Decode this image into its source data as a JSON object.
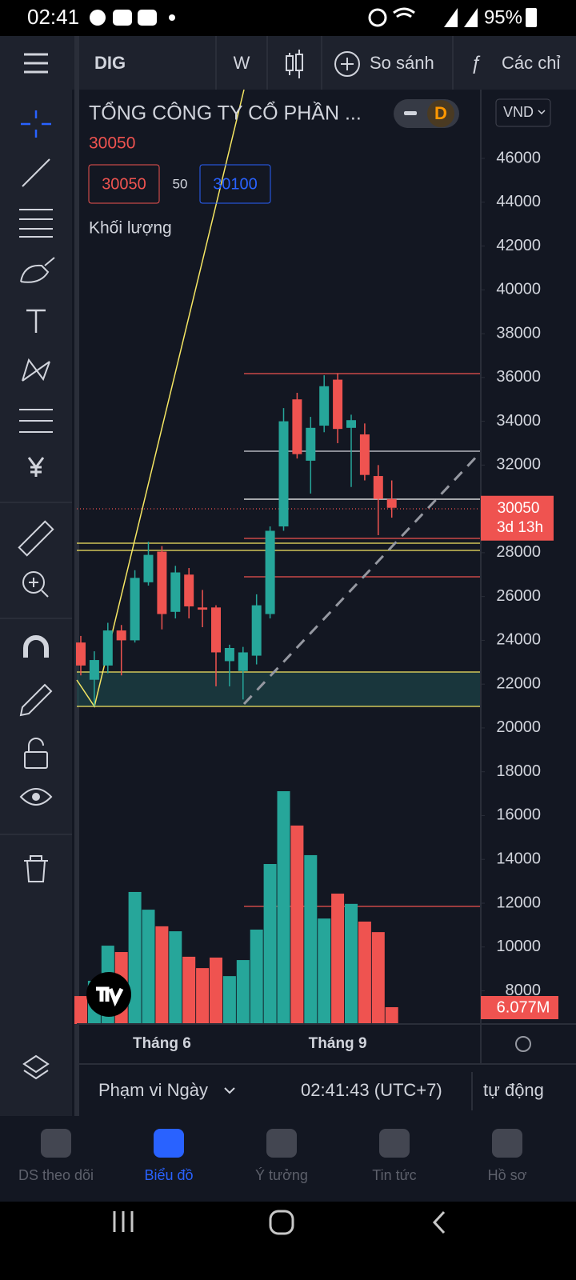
{
  "status_bar": {
    "time": "02:41",
    "battery": "95%"
  },
  "toolbar": {
    "symbol": "DIG",
    "interval": "W",
    "compare": "So sánh",
    "indicators": "Các chỉ"
  },
  "legend": {
    "name": "TỔNG CÔNG TY CỔ PHẦN ...",
    "badge": "D",
    "price": 30050,
    "bid": 30050,
    "spread": 50,
    "ask": 30100,
    "volume_label": "Khối lượng"
  },
  "currency": "VND",
  "countdown": "3d 13h",
  "chart_data": {
    "type": "candlestick",
    "categories": [
      null,
      null,
      null,
      null,
      null,
      null,
      "Tháng 6",
      null,
      null,
      null,
      null,
      null,
      null,
      null,
      null,
      null,
      null,
      null,
      null,
      "Tháng 9",
      null,
      null,
      null,
      null
    ],
    "open": [
      23900,
      22200,
      22850,
      24450,
      24000,
      26650,
      28050,
      25300,
      27000,
      25500,
      25500,
      23050,
      22600,
      23300,
      25200,
      29200,
      35000,
      32200,
      33800,
      35900,
      33700,
      33400,
      31500,
      30450
    ],
    "high": [
      24200,
      23500,
      24800,
      24700,
      27200,
      28500,
      28300,
      27400,
      27300,
      26300,
      25600,
      23800,
      23700,
      26100,
      29200,
      34600,
      35300,
      34200,
      36100,
      36200,
      34300,
      33900,
      32000,
      31300
    ],
    "low": [
      22400,
      21000,
      22500,
      22400,
      23900,
      26500,
      24500,
      25000,
      25000,
      24600,
      21900,
      21900,
      21300,
      22900,
      25000,
      29000,
      32300,
      30700,
      33500,
      33000,
      31000,
      31300,
      28800,
      29600
    ],
    "close": [
      22850,
      23100,
      24450,
      24000,
      26850,
      27900,
      25200,
      27100,
      25550,
      25400,
      23450,
      23650,
      23450,
      25600,
      29000,
      34000,
      32500,
      33700,
      35600,
      33650,
      34050,
      31550,
      30450,
      30050
    ],
    "up_color": "#26a69a",
    "down_color": "#ef5350",
    "volume": {
      "values": [
        10.1,
        15.6,
        28.3,
        26.0,
        47.7,
        41.3,
        35.3,
        33.5,
        24.3,
        20.2,
        24.0,
        17.3,
        23.1,
        34.1,
        57.8,
        84.1,
        71.7,
        61.0,
        38.1,
        47.1,
        43.4,
        37.0,
        33.2,
        6.077
      ],
      "value_labels": [
        null,
        null,
        null,
        null,
        null,
        null,
        null,
        null,
        null,
        null,
        null,
        null,
        null,
        null,
        null,
        null,
        null,
        null,
        null,
        null,
        null,
        null,
        null,
        "6.077M"
      ],
      "ylim": [
        0,
        100
      ]
    },
    "ylim": [
      6485,
      49141
    ],
    "yticks": [
      8000,
      10000,
      12000,
      14000,
      16000,
      18000,
      20000,
      22000,
      24000,
      26000,
      28000,
      30000,
      32000,
      34000,
      36000,
      38000,
      40000,
      42000,
      44000,
      46000
    ],
    "last_price": 30050
  },
  "bottom_bar": {
    "range": "Phạm vi Ngày",
    "clock": "02:41:43 (UTC+7)",
    "mode": "tự động"
  },
  "nav": [
    "DS theo dõi",
    "Biểu đồ",
    "Ý tưởng",
    "Tin tức",
    "Hồ sơ"
  ]
}
